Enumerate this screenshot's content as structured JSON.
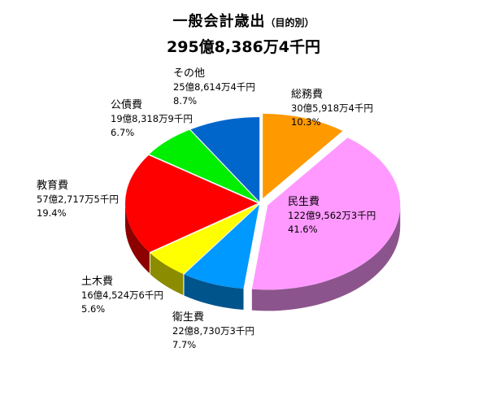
{
  "title": "一般会計歳出",
  "subtitle": "（目的別）",
  "total": "295億8,386万4千円",
  "chart_data": {
    "type": "pie",
    "title": "一般会計歳出",
    "subtitle": "（目的別）",
    "total_label": "295億8,386万4千円",
    "slices": [
      {
        "name": "総務費",
        "amount": "30億5,918万4千円",
        "percent_label": "10.3%",
        "value": 10.3,
        "color": "#FF9900"
      },
      {
        "name": "民生費",
        "amount": "122億9,562万3千円",
        "percent_label": "41.6%",
        "value": 41.6,
        "color": "#FF99FF"
      },
      {
        "name": "衛生費",
        "amount": "22億8,730万3千円",
        "percent_label": "7.7%",
        "value": 7.7,
        "color": "#0099FF"
      },
      {
        "name": "土木費",
        "amount": "16億4,524万6千円",
        "percent_label": "5.6%",
        "value": 5.6,
        "color": "#FFFF00"
      },
      {
        "name": "教育費",
        "amount": "57億2,717万5千円",
        "percent_label": "19.4%",
        "value": 19.4,
        "color": "#FF0000"
      },
      {
        "name": "公債費",
        "amount": "19億8,318万9千円",
        "percent_label": "6.7%",
        "value": 6.7,
        "color": "#00EE00"
      },
      {
        "name": "その他",
        "amount": "25億8,614万4千円",
        "percent_label": "8.7%",
        "value": 8.7,
        "color": "#0066CC"
      }
    ]
  }
}
